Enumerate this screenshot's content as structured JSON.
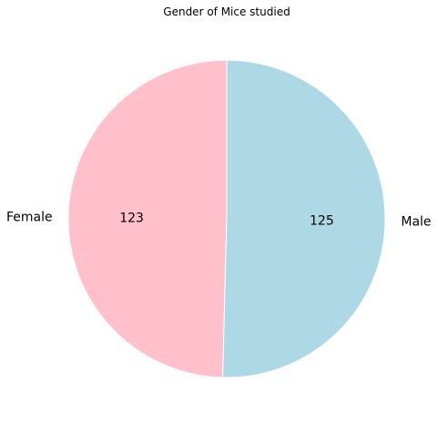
{
  "chart_data": {
    "type": "pie",
    "title": "Gender of Mice studied",
    "slices": [
      {
        "label": "Female",
        "value": 123,
        "display": "123",
        "color": "#ffc0cb"
      },
      {
        "label": "Male",
        "value": 125,
        "display": "125",
        "color": "#add8e6"
      }
    ],
    "start_angle_degrees": 90,
    "direction": "counterclockwise",
    "slice_edge_color": "#ffffff"
  }
}
